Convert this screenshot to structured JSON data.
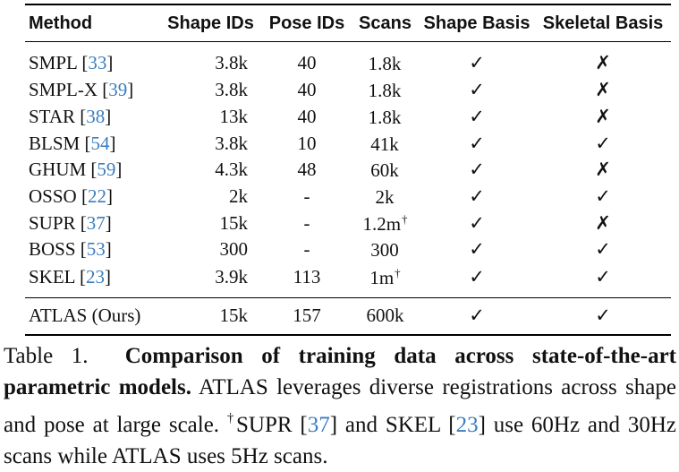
{
  "table": {
    "headers": [
      "Method",
      "Shape IDs",
      "Pose IDs",
      "Scans",
      "Shape Basis",
      "Skeletal Basis"
    ],
    "rows": [
      {
        "name": "SMPL",
        "ref": "33",
        "shape_ids": "3.8k",
        "pose_ids": "40",
        "scans": "1.8k",
        "scans_dagger": "",
        "shape_basis": "✓",
        "skeletal_basis": "✗"
      },
      {
        "name": "SMPL-X",
        "ref": "39",
        "shape_ids": "3.8k",
        "pose_ids": "40",
        "scans": "1.8k",
        "scans_dagger": "",
        "shape_basis": "✓",
        "skeletal_basis": "✗"
      },
      {
        "name": "STAR",
        "ref": "38",
        "shape_ids": "13k",
        "pose_ids": "40",
        "scans": "1.8k",
        "scans_dagger": "",
        "shape_basis": "✓",
        "skeletal_basis": "✗"
      },
      {
        "name": "BLSM",
        "ref": "54",
        "shape_ids": "3.8k",
        "pose_ids": "10",
        "scans": "41k",
        "scans_dagger": "",
        "shape_basis": "✓",
        "skeletal_basis": "✓"
      },
      {
        "name": "GHUM",
        "ref": "59",
        "shape_ids": "4.3k",
        "pose_ids": "48",
        "scans": "60k",
        "scans_dagger": "",
        "shape_basis": "✓",
        "skeletal_basis": "✗"
      },
      {
        "name": "OSSO",
        "ref": "22",
        "shape_ids": "2k",
        "pose_ids": "-",
        "scans": "2k",
        "scans_dagger": "",
        "shape_basis": "✓",
        "skeletal_basis": "✓"
      },
      {
        "name": "SUPR",
        "ref": "37",
        "shape_ids": "15k",
        "pose_ids": "-",
        "scans": "1.2m",
        "scans_dagger": "†",
        "shape_basis": "✓",
        "skeletal_basis": "✗"
      },
      {
        "name": "BOSS",
        "ref": "53",
        "shape_ids": "300",
        "pose_ids": "-",
        "scans": "300",
        "scans_dagger": "",
        "shape_basis": "✓",
        "skeletal_basis": "✓"
      },
      {
        "name": "SKEL",
        "ref": "23",
        "shape_ids": "3.9k",
        "pose_ids": "113",
        "scans": "1m",
        "scans_dagger": "†",
        "shape_basis": "✓",
        "skeletal_basis": "✓"
      }
    ],
    "ours": {
      "name": "ATLAS (Ours)",
      "shape_ids": "15k",
      "pose_ids": "157",
      "scans": "600k",
      "shape_basis": "✓",
      "skeletal_basis": "✓"
    }
  },
  "caption": {
    "label": "Table 1.",
    "bold": "Comparison of training data across state-of-the-art parametric models.",
    "text1": "ATLAS leverages diverse registrations across shape and pose at large scale.",
    "dagger": "†",
    "text2": "SUPR [",
    "ref1": "37",
    "text3": "] and SKEL [",
    "ref2": "23",
    "text4": "] use 60Hz and 30Hz scans while ATLAS uses 5Hz scans."
  }
}
